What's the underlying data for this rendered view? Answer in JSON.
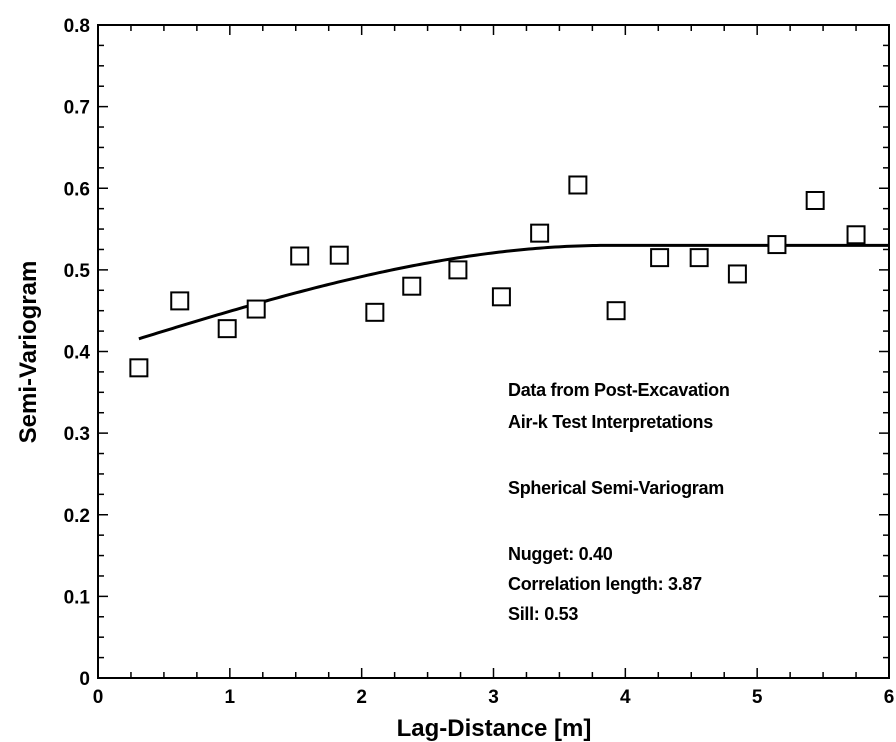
{
  "chart_data": {
    "type": "scatter",
    "title": "",
    "xlabel": "Lag-Distance [m]",
    "ylabel": "Semi-Variogram",
    "xlim": [
      0,
      6
    ],
    "ylim": [
      0,
      0.8
    ],
    "x_ticks": [
      "0",
      "1",
      "2",
      "3",
      "4",
      "5",
      "6"
    ],
    "y_ticks": [
      "0",
      "0.1",
      "0.2",
      "0.3",
      "0.4",
      "0.5",
      "0.6",
      "0.7",
      "0.8"
    ],
    "x_minor_step": 0.25,
    "y_minor_step": 0.025,
    "grid": false,
    "series": [
      {
        "marker": "open-square",
        "x": [
          0.31,
          0.62,
          0.98,
          1.2,
          1.53,
          1.83,
          2.1,
          2.38,
          2.73,
          3.06,
          3.35,
          3.64,
          3.93,
          4.26,
          4.56,
          4.85,
          5.15,
          5.44,
          5.75
        ],
        "y": [
          0.38,
          0.462,
          0.428,
          0.452,
          0.517,
          0.518,
          0.448,
          0.48,
          0.5,
          0.467,
          0.545,
          0.604,
          0.45,
          0.515,
          0.515,
          0.495,
          0.531,
          0.585,
          0.543
        ]
      },
      {
        "style": "line",
        "model": "spherical",
        "nugget": 0.4,
        "correlation_length": 3.87,
        "sill": 0.53,
        "x_start": 0.31,
        "x_end": 6
      }
    ],
    "annotations": [
      "Data from Post-Excavation",
      "Air-k Test Interpretations",
      "Spherical Semi-Variogram",
      "Nugget: 0.40",
      "Correlation length: 3.87",
      "Sill: 0.53"
    ],
    "annotation_position": "lower-right"
  }
}
